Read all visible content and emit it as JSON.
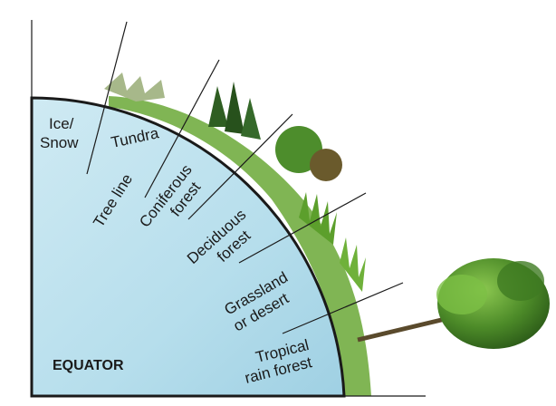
{
  "diagram": {
    "labels": {
      "ice_snow_line1": "Ice/",
      "ice_snow_line2": "Snow",
      "tundra": "Tundra",
      "tree_line": "Tree line",
      "coniferous_line1": "Coniferous",
      "coniferous_line2": "forest",
      "deciduous_line1": "Deciduous",
      "deciduous_line2": "forest",
      "grassland_line1": "Grassland",
      "grassland_line2": "or desert",
      "tropical_line1": "Tropical",
      "tropical_line2": "rain forest",
      "equator": "EQUATOR"
    },
    "colors": {
      "globe_fill": "#bfe3ee",
      "globe_outline": "#1a1a1a",
      "vegetation_dark": "#2f6a1f",
      "vegetation_light": "#7dbb3a",
      "grass": "#5c9f2c"
    }
  }
}
